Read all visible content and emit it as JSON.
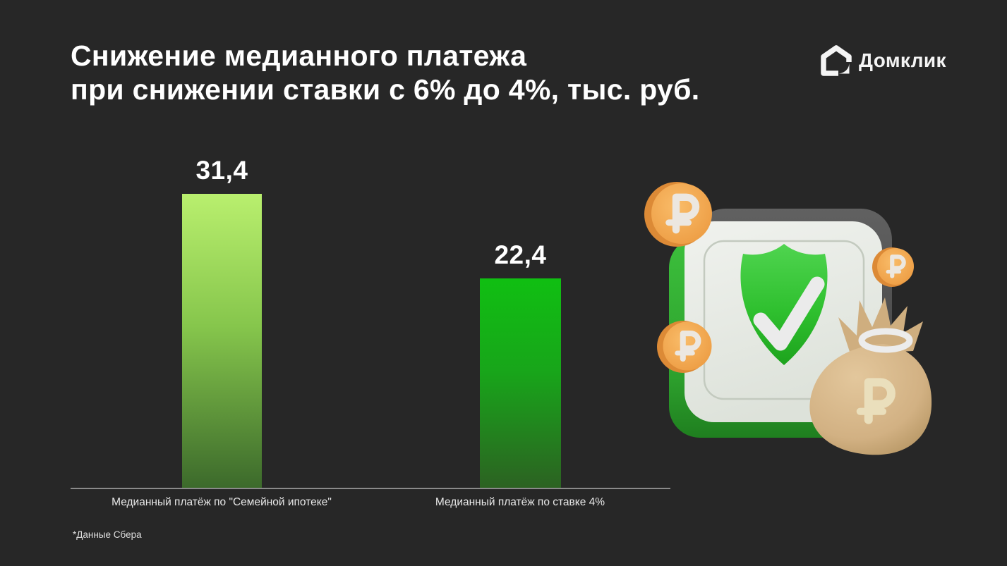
{
  "header": {
    "title_line1": "Снижение медианного платежа",
    "title_line2": "при снижении ставки с 6% до 4%, тыс. руб.",
    "logo_text": "Домклик"
  },
  "chart_data": {
    "type": "bar",
    "title": "Снижение медианного платежа при снижении ставки с 6% до 4%, тыс. руб.",
    "unit": "тыс. руб.",
    "categories": [
      "Медианный платёж по \"Семейной ипотеке\"",
      "Медианный платёж по ставке 4%"
    ],
    "values": [
      31.4,
      22.4
    ],
    "value_labels": [
      "31,4",
      "22,4"
    ],
    "ylim": [
      0,
      31.4
    ],
    "grid": false,
    "legend": false,
    "bar_gradients": [
      {
        "top": "#b9ef6e",
        "mid": "#86c64c",
        "bottom": "#3c6a2b"
      },
      {
        "top": "#10bf12",
        "mid": "#18a51a",
        "bottom": "#2c6222"
      }
    ]
  },
  "footnote": "*Данные Сбера",
  "colors": {
    "background": "#272727",
    "title": "#ffffff",
    "axis_line": "#8a8a8a",
    "category_label": "#e8e8e8",
    "coin_orange": "#f2a54e",
    "shield_green": "#35c435",
    "money_bag_tan": "#d6b586",
    "card_light": "#e9ece6",
    "card_green_edge": "#35b034"
  },
  "illustration": {
    "icons": [
      "shield-check-icon",
      "ruble-coin-icon",
      "money-bag-icon"
    ]
  }
}
